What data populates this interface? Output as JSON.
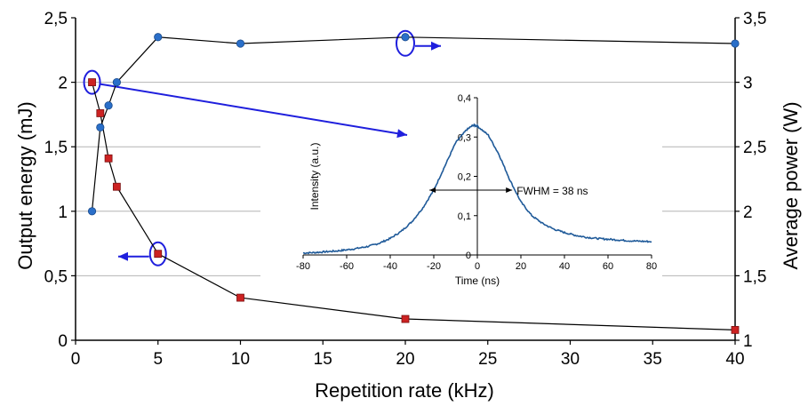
{
  "chart_data": [
    {
      "type": "scatter",
      "xlabel": "Repetition rate (kHz)",
      "ylabel_left": "Output energy (mJ)",
      "ylabel_right": "Average power (W)",
      "xlim": [
        0,
        40
      ],
      "ylim_left": [
        0,
        2.5
      ],
      "ylim_right": [
        1,
        3.5
      ],
      "x_ticks": [
        "0",
        "5",
        "10",
        "15",
        "20",
        "25",
        "30",
        "35",
        "40"
      ],
      "y_left_ticks": [
        "0",
        "0,5",
        "1",
        "1,5",
        "2",
        "2,5"
      ],
      "y_right_ticks": [
        "1",
        "1,5",
        "2",
        "2,5",
        "3",
        "3,5"
      ],
      "grid": "horizontal",
      "series": [
        {
          "axis": "left",
          "color": "#cc2222",
          "marker": "square",
          "points": [
            [
              1,
              2.0
            ],
            [
              1.5,
              1.76
            ],
            [
              2,
              1.41
            ],
            [
              2.5,
              1.19
            ],
            [
              5,
              0.67
            ],
            [
              10,
              0.33
            ],
            [
              20,
              0.165
            ],
            [
              40,
              0.08
            ]
          ]
        },
        {
          "axis": "right",
          "color": "#2a6fc9",
          "marker": "circle",
          "points": [
            [
              1,
              2.0
            ],
            [
              1.5,
              2.65
            ],
            [
              2,
              2.82
            ],
            [
              2.5,
              3.0
            ],
            [
              5,
              3.35
            ],
            [
              10,
              3.3
            ],
            [
              20,
              3.35
            ],
            [
              40,
              3.3
            ]
          ]
        }
      ],
      "annotation_color": "#1f1fdd"
    },
    {
      "type": "line",
      "xlabel": "Time (ns)",
      "ylabel": "Intensity (a.u.)",
      "xlim": [
        -80,
        80
      ],
      "ylim": [
        0,
        0.4
      ],
      "x_ticks": [
        "-80",
        "-60",
        "-40",
        "-20",
        "0",
        "20",
        "40",
        "60",
        "80"
      ],
      "y_ticks": [
        "0",
        "0,1",
        "0,2",
        "0,3",
        "0,4"
      ],
      "annotation": "FWHM = 38 ns",
      "fwhm_range": [
        -22,
        16
      ],
      "fwhm_level": 0.165,
      "color": "#1f5a99",
      "series": [
        {
          "x": [
            -80,
            -75,
            -70,
            -65,
            -60,
            -55,
            -50,
            -45,
            -40,
            -35,
            -30,
            -25,
            -20,
            -15,
            -10,
            -5,
            -2,
            0,
            5,
            10,
            15,
            20,
            25,
            30,
            35,
            40,
            45,
            50,
            55,
            60,
            65,
            70,
            75,
            80
          ],
          "y": [
            0.005,
            0.006,
            0.008,
            0.01,
            0.013,
            0.017,
            0.022,
            0.03,
            0.042,
            0.06,
            0.085,
            0.12,
            0.165,
            0.225,
            0.285,
            0.318,
            0.33,
            0.328,
            0.305,
            0.255,
            0.19,
            0.135,
            0.1,
            0.08,
            0.066,
            0.057,
            0.05,
            0.045,
            0.042,
            0.04,
            0.038,
            0.036,
            0.035,
            0.034
          ]
        }
      ]
    }
  ]
}
